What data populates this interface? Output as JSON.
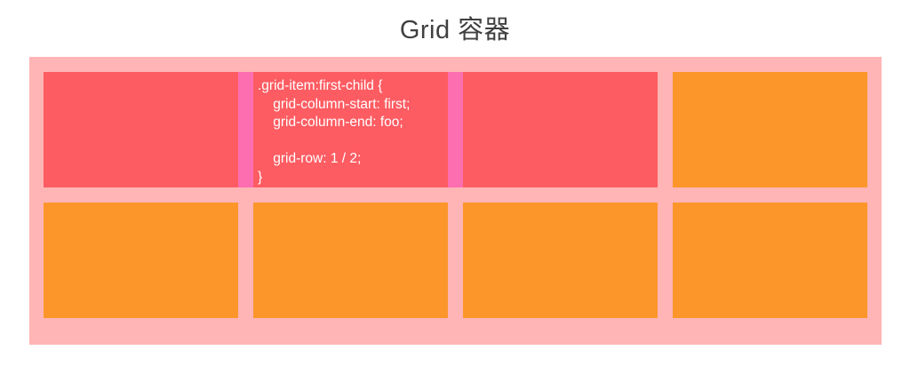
{
  "title": "Grid 容器",
  "colors": {
    "background": "#FFFFFF",
    "container": "#FFB5B5",
    "item_red": "#FD5C62",
    "item_orange": "#FC962B",
    "grid_line": "#FD6EB1",
    "title_text": "#404040",
    "code_text": "#FFFFFF"
  },
  "code_block": {
    "lines": [
      ".grid-item:first-child {",
      "    grid-column-start: first;",
      "    grid-column-end: foo;",
      "",
      "    grid-row: 1 / 2;",
      "}"
    ]
  },
  "grid": {
    "columns": 4,
    "rows": 2,
    "orange_item_count": 5
  }
}
